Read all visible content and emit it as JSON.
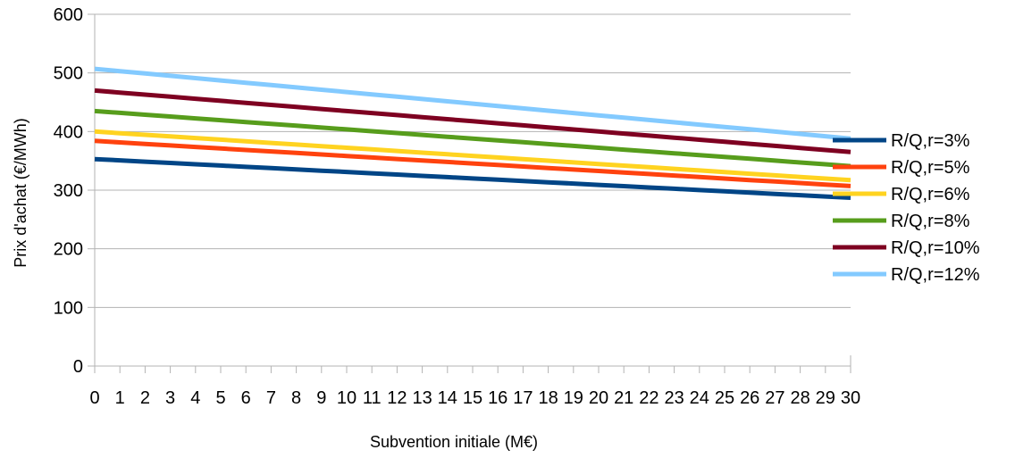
{
  "chart_data": {
    "type": "line",
    "title": "",
    "xlabel": "Subvention initiale (M€)",
    "ylabel": "Prix d'achat (€/MWh)",
    "x": [
      0,
      1,
      2,
      3,
      4,
      5,
      6,
      7,
      8,
      9,
      10,
      11,
      12,
      13,
      14,
      15,
      16,
      17,
      18,
      19,
      20,
      21,
      22,
      23,
      24,
      25,
      26,
      27,
      28,
      29,
      30
    ],
    "xticklabels": [
      "0",
      "1",
      "2",
      "3",
      "4",
      "5",
      "6",
      "7",
      "8",
      "9",
      "10",
      "11",
      "12",
      "13",
      "14",
      "15",
      "16",
      "17",
      "18",
      "19",
      "20",
      "21",
      "22",
      "23",
      "24",
      "25",
      "26",
      "27",
      "28",
      "29",
      "30"
    ],
    "ylim": [
      0,
      600
    ],
    "yticks": [
      0,
      100,
      200,
      300,
      400,
      500,
      600
    ],
    "grid": "horizontal",
    "legend_position": "right",
    "series": [
      {
        "name": "R/Q,r=3%",
        "color": "#004586",
        "start": 353,
        "end": 287
      },
      {
        "name": "R/Q,r=5%",
        "color": "#ff420e",
        "start": 384,
        "end": 307
      },
      {
        "name": "R/Q,r=6%",
        "color": "#ffd320",
        "start": 400,
        "end": 317
      },
      {
        "name": "R/Q,r=8%",
        "color": "#579d1c",
        "start": 435,
        "end": 341
      },
      {
        "name": "R/Q,r=10%",
        "color": "#7e0021",
        "start": 470,
        "end": 365
      },
      {
        "name": "R/Q,r=12%",
        "color": "#83caff",
        "start": 507,
        "end": 388
      }
    ]
  }
}
